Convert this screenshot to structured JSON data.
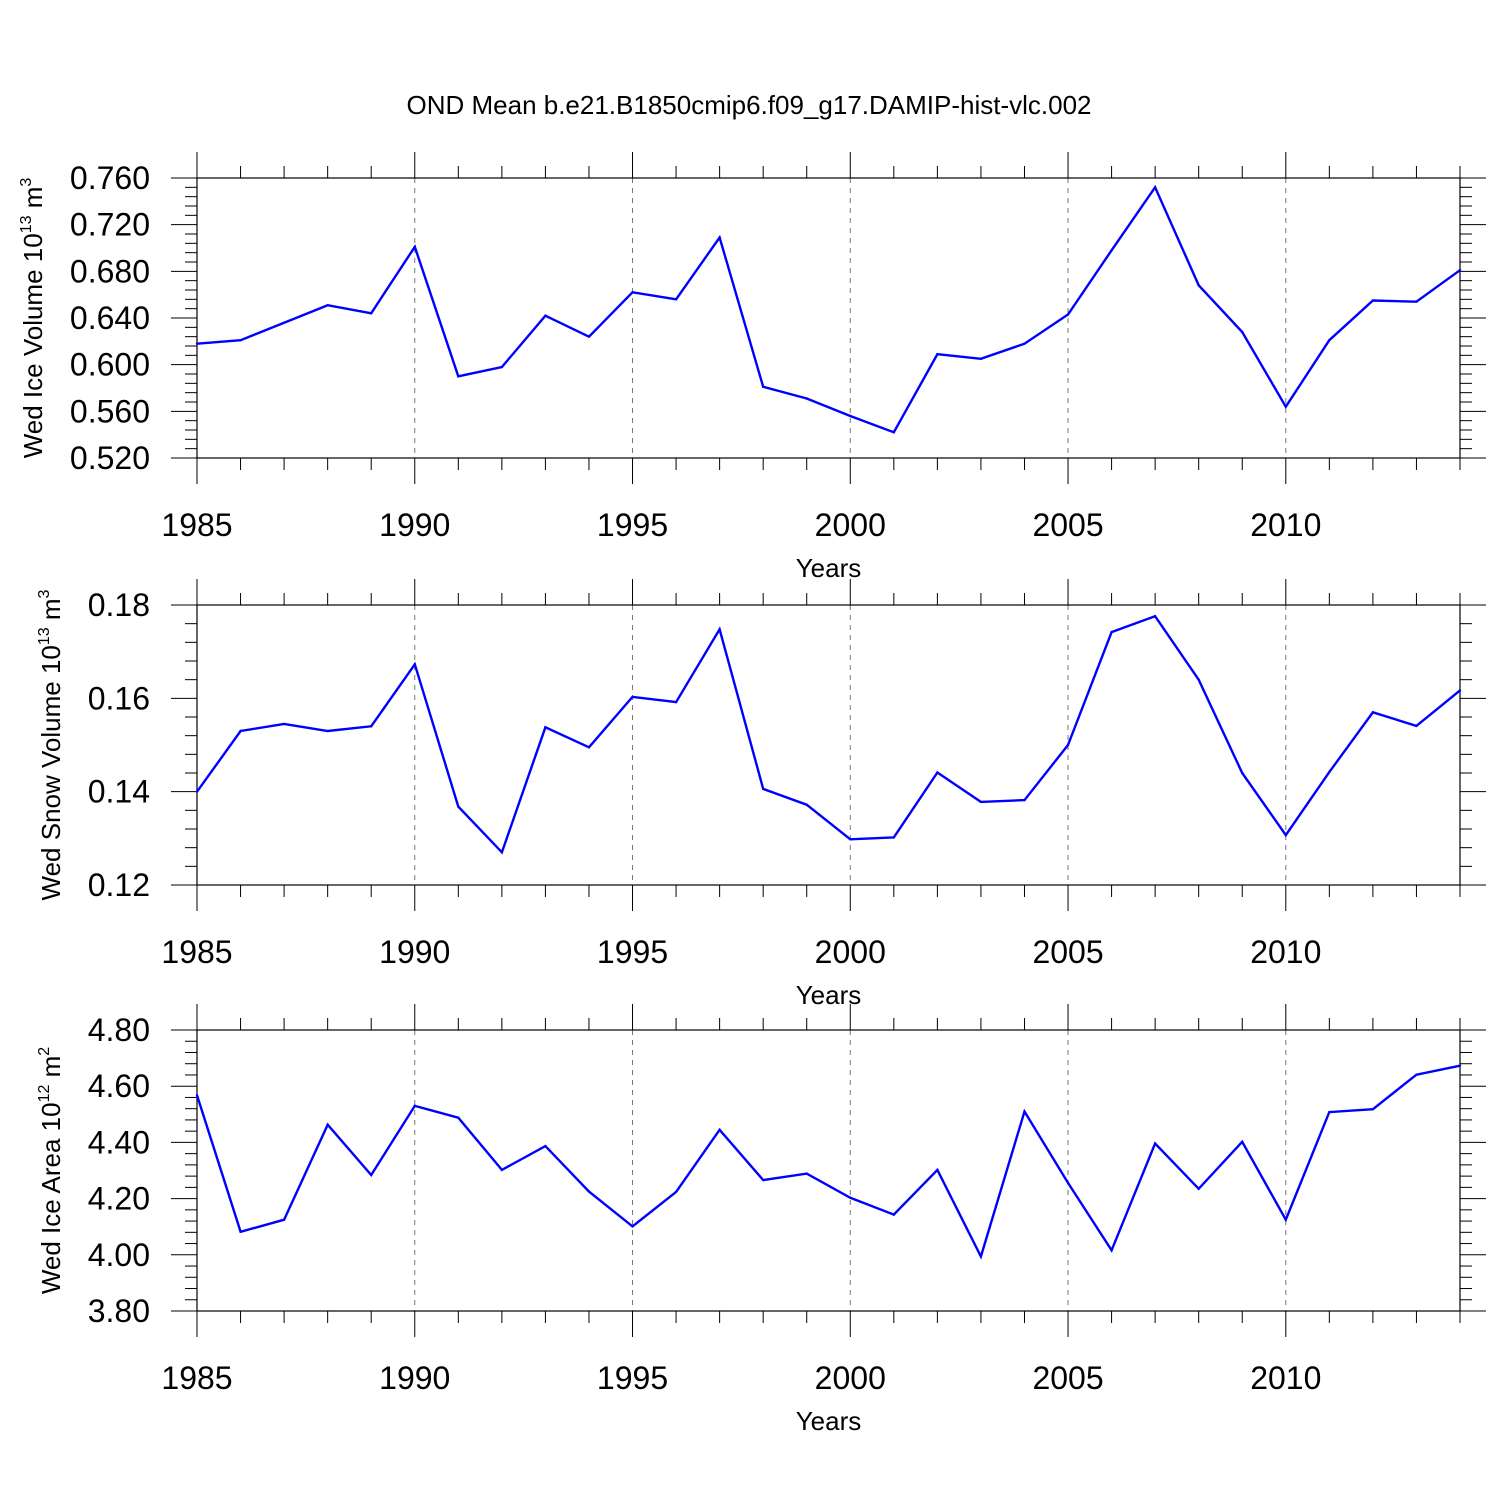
{
  "title": "OND Mean b.e21.B1850cmip6.f09_g17.DAMIP-hist-vlc.002",
  "chart_data": [
    {
      "type": "line",
      "id": "ice-volume",
      "ylabel": {
        "text": "Wed Ice Volume 10",
        "exp1": "13",
        "mid": " m",
        "exp2": "3"
      },
      "xlabel": "Years",
      "xlim": [
        1985,
        2014
      ],
      "ylim": [
        0.52,
        0.76
      ],
      "y_major_ticks": [
        0.52,
        0.56,
        0.6,
        0.64,
        0.68,
        0.72,
        0.76
      ],
      "y_tick_labels": [
        "0.520",
        "0.560",
        "0.600",
        "0.640",
        "0.680",
        "0.720",
        "0.760"
      ],
      "y_minor_step": 0.008,
      "x_major_ticks": [
        1985,
        1990,
        1995,
        2000,
        2005,
        2010
      ],
      "x_tick_labels": [
        "1985",
        "1990",
        "1995",
        "2000",
        "2005",
        "2010"
      ],
      "grid": "vertical-dashed",
      "series": [
        {
          "name": "Wed Ice Volume",
          "color": "#0000ff",
          "x": [
            1985,
            1986,
            1987,
            1988,
            1989,
            1990,
            1991,
            1992,
            1993,
            1994,
            1995,
            1996,
            1997,
            1998,
            1999,
            2000,
            2001,
            2002,
            2003,
            2004,
            2005,
            2006,
            2007,
            2008,
            2009,
            2010,
            2011,
            2012,
            2013,
            2014
          ],
          "values": [
            0.618,
            0.621,
            0.636,
            0.651,
            0.644,
            0.701,
            0.59,
            0.598,
            0.642,
            0.624,
            0.662,
            0.656,
            0.709,
            0.581,
            0.571,
            0.556,
            0.542,
            0.609,
            0.605,
            0.618,
            0.643,
            0.698,
            0.752,
            0.668,
            0.628,
            0.564,
            0.621,
            0.655,
            0.654,
            0.681
          ]
        }
      ]
    },
    {
      "type": "line",
      "id": "snow-volume",
      "ylabel": {
        "text": "Wed Snow Volume 10",
        "exp1": "13",
        "mid": " m",
        "exp2": "3"
      },
      "xlabel": "Years",
      "xlim": [
        1985,
        2014
      ],
      "ylim": [
        0.12,
        0.18
      ],
      "y_major_ticks": [
        0.12,
        0.14,
        0.16,
        0.18
      ],
      "y_tick_labels": [
        "0.12",
        "0.14",
        "0.16",
        "0.18"
      ],
      "y_minor_step": 0.004,
      "x_major_ticks": [
        1985,
        1990,
        1995,
        2000,
        2005,
        2010
      ],
      "x_tick_labels": [
        "1985",
        "1990",
        "1995",
        "2000",
        "2005",
        "2010"
      ],
      "grid": "vertical-dashed",
      "series": [
        {
          "name": "Wed Snow Volume",
          "color": "#0000ff",
          "x": [
            1985,
            1986,
            1987,
            1988,
            1989,
            1990,
            1991,
            1992,
            1993,
            1994,
            1995,
            1996,
            1997,
            1998,
            1999,
            2000,
            2001,
            2002,
            2003,
            2004,
            2005,
            2006,
            2007,
            2008,
            2009,
            2010,
            2011,
            2012,
            2013,
            2014
          ],
          "values": [
            0.14,
            0.153,
            0.1545,
            0.153,
            0.154,
            0.1673,
            0.1368,
            0.127,
            0.1538,
            0.1495,
            0.1603,
            0.1592,
            0.1748,
            0.1406,
            0.1372,
            0.1298,
            0.1302,
            0.1441,
            0.1378,
            0.1382,
            0.15,
            0.1742,
            0.1776,
            0.164,
            0.144,
            0.1307,
            0.1442,
            0.157,
            0.1541,
            0.1617
          ]
        }
      ]
    },
    {
      "type": "line",
      "id": "ice-area",
      "ylabel": {
        "text": "Wed Ice Area 10",
        "exp1": "12",
        "mid": " m",
        "exp2": "2"
      },
      "xlabel": "Years",
      "xlim": [
        1985,
        2014
      ],
      "ylim": [
        3.8,
        4.8
      ],
      "y_major_ticks": [
        3.8,
        4.0,
        4.2,
        4.4,
        4.6,
        4.8
      ],
      "y_tick_labels": [
        "3.80",
        "4.00",
        "4.20",
        "4.40",
        "4.60",
        "4.80"
      ],
      "y_minor_step": 0.04,
      "x_major_ticks": [
        1985,
        1990,
        1995,
        2000,
        2005,
        2010
      ],
      "x_tick_labels": [
        "1985",
        "1990",
        "1995",
        "2000",
        "2005",
        "2010"
      ],
      "grid": "vertical-dashed",
      "series": [
        {
          "name": "Wed Ice Area",
          "color": "#0000ff",
          "x": [
            1985,
            1986,
            1987,
            1988,
            1989,
            1990,
            1991,
            1992,
            1993,
            1994,
            1995,
            1996,
            1997,
            1998,
            1999,
            2000,
            2001,
            2002,
            2003,
            2004,
            2005,
            2006,
            2007,
            2008,
            2009,
            2010,
            2011,
            2012,
            2013,
            2014
          ],
          "values": [
            4.568,
            4.082,
            4.125,
            4.463,
            4.284,
            4.53,
            4.488,
            4.302,
            4.387,
            4.225,
            4.101,
            4.224,
            4.445,
            4.266,
            4.289,
            4.203,
            4.143,
            4.302,
            3.994,
            4.51,
            4.256,
            4.016,
            4.396,
            4.235,
            4.402,
            4.125,
            4.508,
            4.518,
            4.641,
            4.673
          ]
        }
      ]
    }
  ]
}
